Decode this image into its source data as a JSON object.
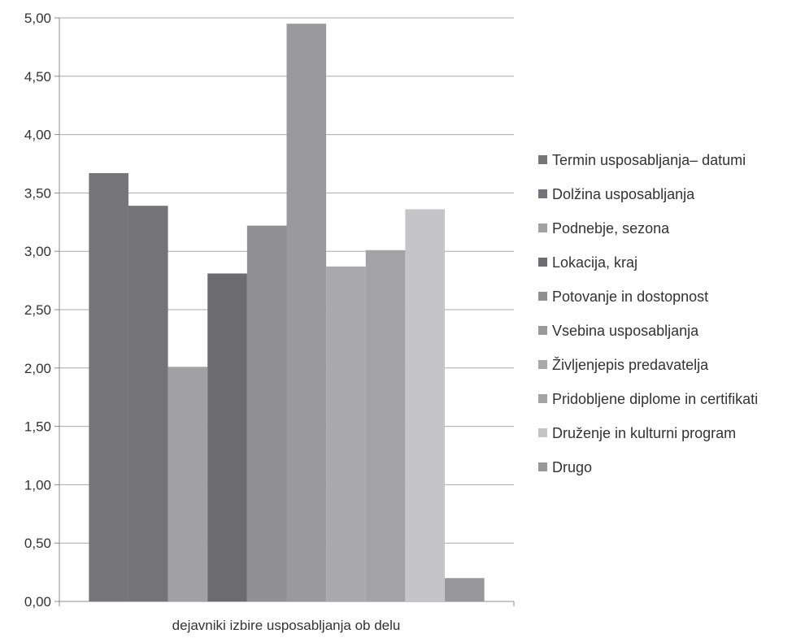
{
  "chart_data": {
    "type": "bar",
    "categories": [
      "dejavniki izbire usposabljanja ob delu"
    ],
    "xlabel": "dejavniki izbire usposabljanja ob delu",
    "ylabel": "",
    "ylim": [
      0,
      5
    ],
    "yticks": [
      "0,00",
      "0,50",
      "1,00",
      "1,50",
      "2,00",
      "2,50",
      "3,00",
      "3,50",
      "4,00",
      "4,50",
      "5,00"
    ],
    "grid": true,
    "legend": "right",
    "series": [
      {
        "name": "Termin usposabljanja– datumi",
        "values": [
          3.67
        ],
        "color": "#767679"
      },
      {
        "name": "Dolžina usposabljanja",
        "values": [
          3.39
        ],
        "color": "#747478"
      },
      {
        "name": "Podnebje, sezona",
        "values": [
          2.01
        ],
        "color": "#a1a1a3"
      },
      {
        "name": "Lokacija, kraj",
        "values": [
          2.81
        ],
        "color": "#6b6b70"
      },
      {
        "name": "Potovanje in dostopnost",
        "values": [
          3.22
        ],
        "color": "#909093"
      },
      {
        "name": "Vsebina usposabljanja",
        "values": [
          4.95
        ],
        "color": "#9a9a9d"
      },
      {
        "name": "Življenjepis predavatelja",
        "values": [
          2.87
        ],
        "color": "#a9a9ab"
      },
      {
        "name": "Pridobljene diplome in certifikati",
        "values": [
          3.01
        ],
        "color": "#a3a3a5"
      },
      {
        "name": "Druženje in kulturni program",
        "values": [
          3.36
        ],
        "color": "#c5c5c7"
      },
      {
        "name": "Drugo",
        "values": [
          0.2
        ],
        "color": "#98989b"
      }
    ]
  }
}
